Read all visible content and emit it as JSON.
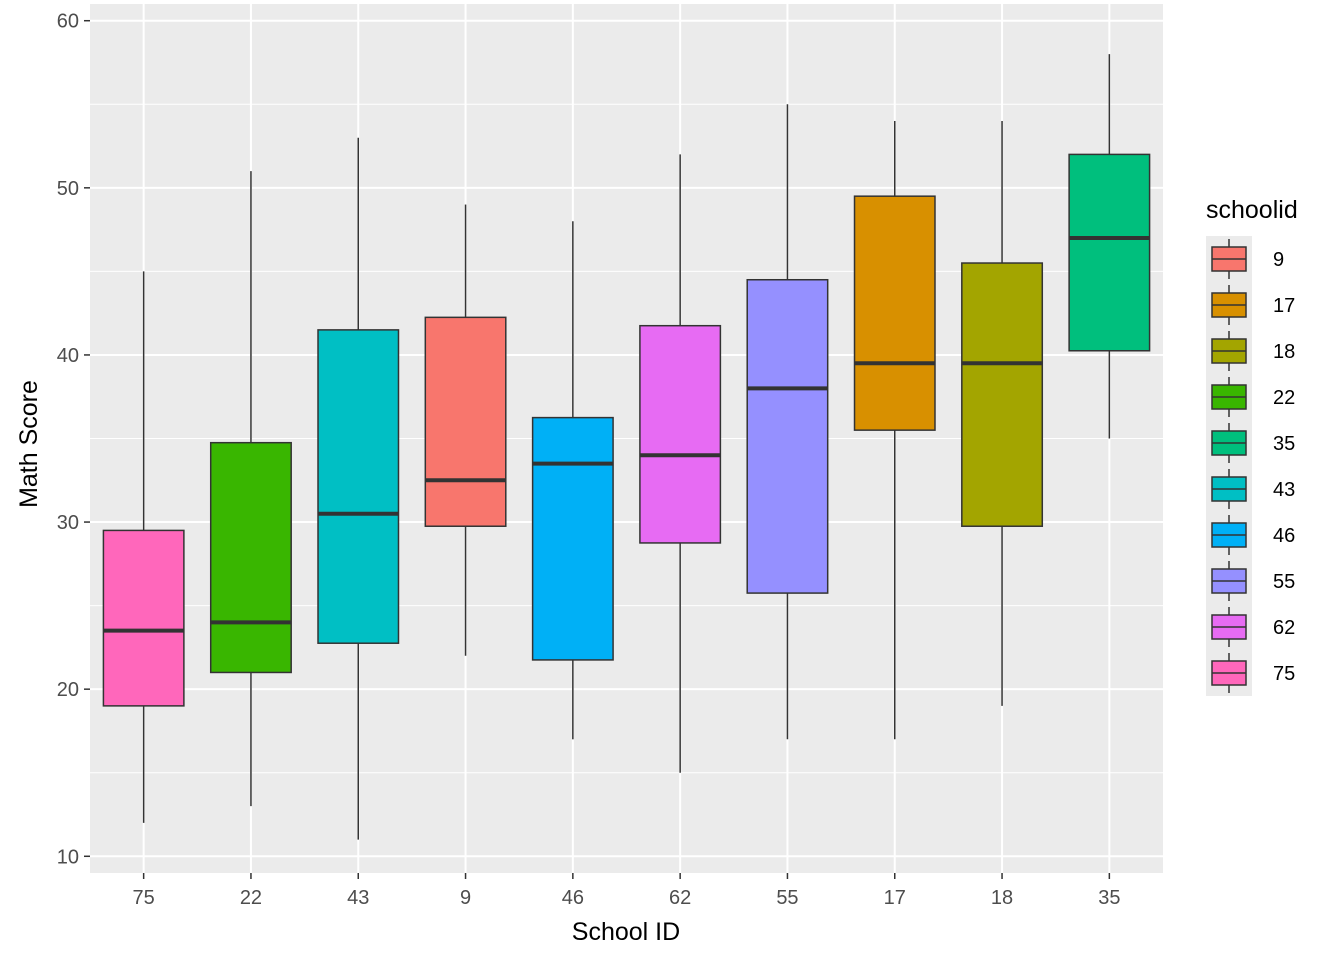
{
  "chart_data": {
    "type": "boxplot",
    "xlabel": "School ID",
    "ylabel": "Math Score",
    "ylim": [
      9,
      61
    ],
    "yticks": [
      10,
      20,
      30,
      40,
      50,
      60
    ],
    "grid": true,
    "categories": [
      "75",
      "22",
      "43",
      "9",
      "46",
      "62",
      "55",
      "17",
      "18",
      "35"
    ],
    "boxes": [
      {
        "school": "75",
        "min": 12,
        "q1": 19.0,
        "median": 23.5,
        "q3": 29.5,
        "max": 45,
        "color": "#FF67BB"
      },
      {
        "school": "22",
        "min": 13,
        "q1": 21.0,
        "median": 24.0,
        "q3": 34.75,
        "max": 51,
        "color": "#39B600"
      },
      {
        "school": "43",
        "min": 11,
        "q1": 22.75,
        "median": 30.5,
        "q3": 41.5,
        "max": 53,
        "color": "#00BFC4"
      },
      {
        "school": "9",
        "min": 22,
        "q1": 29.75,
        "median": 32.5,
        "q3": 42.25,
        "max": 49,
        "color": "#F8766D"
      },
      {
        "school": "46",
        "min": 17,
        "q1": 21.75,
        "median": 33.5,
        "q3": 36.25,
        "max": 48,
        "color": "#00B0F6"
      },
      {
        "school": "62",
        "min": 15,
        "q1": 28.75,
        "median": 34.0,
        "q3": 41.75,
        "max": 52,
        "color": "#E76BF3"
      },
      {
        "school": "55",
        "min": 17,
        "q1": 25.75,
        "median": 38.0,
        "q3": 44.5,
        "max": 55,
        "color": "#9590FF"
      },
      {
        "school": "17",
        "min": 17,
        "q1": 35.5,
        "median": 39.5,
        "q3": 49.5,
        "max": 54,
        "color": "#D89000"
      },
      {
        "school": "18",
        "min": 19,
        "q1": 29.75,
        "median": 39.5,
        "q3": 45.5,
        "max": 54,
        "color": "#A3A500"
      },
      {
        "school": "35",
        "min": 35,
        "q1": 40.25,
        "median": 47.0,
        "q3": 52.0,
        "max": 58,
        "color": "#00BF7D"
      }
    ],
    "legend": {
      "title": "schoolid",
      "position": "right",
      "entries": [
        {
          "label": "9",
          "color": "#F8766D"
        },
        {
          "label": "17",
          "color": "#D89000"
        },
        {
          "label": "18",
          "color": "#A3A500"
        },
        {
          "label": "22",
          "color": "#39B600"
        },
        {
          "label": "35",
          "color": "#00BF7D"
        },
        {
          "label": "43",
          "color": "#00BFC4"
        },
        {
          "label": "46",
          "color": "#00B0F6"
        },
        {
          "label": "55",
          "color": "#9590FF"
        },
        {
          "label": "62",
          "color": "#E76BF3"
        },
        {
          "label": "75",
          "color": "#FF67BB"
        }
      ]
    }
  }
}
